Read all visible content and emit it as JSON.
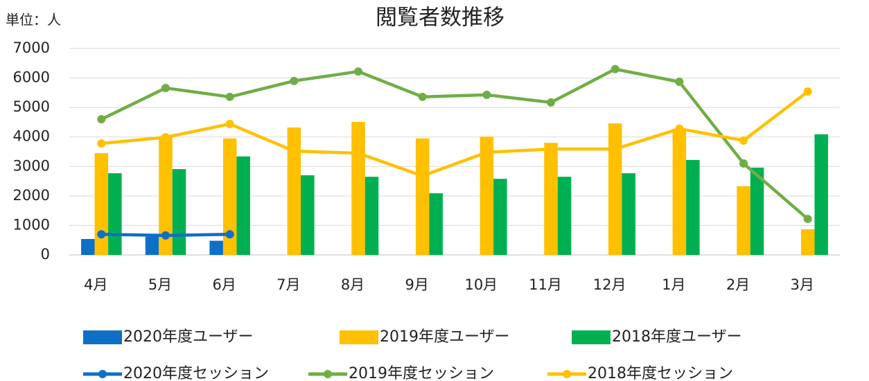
{
  "chart_data": {
    "type": "combo",
    "title": "閲覧者数推移",
    "annotation": "単位：人",
    "categories": [
      "4月",
      "5月",
      "6月",
      "7月",
      "8月",
      "9月",
      "10月",
      "11月",
      "12月",
      "1月",
      "2月",
      "3月"
    ],
    "ylim": [
      0,
      7000
    ],
    "yticks": [
      0,
      1000,
      2000,
      3000,
      4000,
      5000,
      6000,
      7000
    ],
    "grid": true,
    "series": [
      {
        "name": "2020年度ユーザー",
        "type": "bar",
        "color": "#0e6fc7",
        "values": [
          540,
          620,
          480,
          null,
          null,
          null,
          null,
          null,
          null,
          null,
          null,
          null
        ]
      },
      {
        "name": "2019年度ユーザー",
        "type": "bar",
        "color": "#ffc000",
        "values": [
          3450,
          4000,
          3950,
          4320,
          4510,
          3950,
          4010,
          3800,
          4460,
          4280,
          2330,
          870
        ]
      },
      {
        "name": "2018年度ユーザー",
        "type": "bar",
        "color": "#00b050",
        "values": [
          2770,
          2910,
          3340,
          2700,
          2650,
          2090,
          2580,
          2650,
          2770,
          3220,
          2960,
          4090
        ]
      },
      {
        "name": "2020年度セッション",
        "type": "line",
        "color": "#0e6fc7",
        "values": [
          700,
          660,
          700,
          null,
          null,
          null,
          null,
          null,
          null,
          null,
          null,
          null
        ]
      },
      {
        "name": "2019年度セッション",
        "type": "line",
        "color": "#70ad47",
        "values": [
          4600,
          5660,
          5360,
          5900,
          6220,
          5360,
          5430,
          5170,
          6300,
          5870,
          3100,
          1220
        ]
      },
      {
        "name": "2018年度セッション",
        "type": "line",
        "color": "#ffc000",
        "values": [
          3780,
          3990,
          4440,
          3520,
          3450,
          2680,
          3480,
          3590,
          3590,
          4280,
          3880,
          5540
        ]
      }
    ]
  }
}
